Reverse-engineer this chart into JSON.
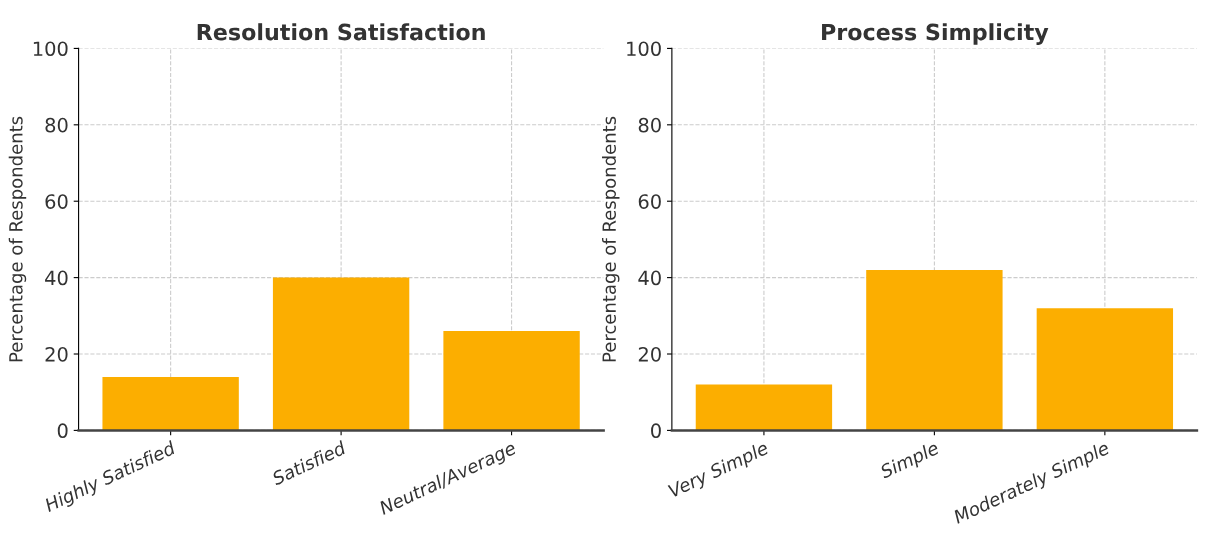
{
  "chart_data": [
    {
      "type": "bar",
      "title": "Resolution Satisfaction",
      "ylabel": "Percentage of Respondents",
      "categories": [
        "Highly Satisfied",
        "Satisfied",
        "Neutral/Average"
      ],
      "values": [
        14,
        40,
        26
      ],
      "color": "#fcae00",
      "ylim": [
        0,
        100
      ],
      "yticks": [
        0,
        20,
        40,
        60,
        80,
        100
      ],
      "grid": true
    },
    {
      "type": "bar",
      "title": "Process Simplicity",
      "ylabel": "Percentage of Respondents",
      "categories": [
        "Very Simple",
        "Simple",
        "Moderately Simple"
      ],
      "values": [
        12,
        42,
        32
      ],
      "color": "#fcae00",
      "ylim": [
        0,
        100
      ],
      "yticks": [
        0,
        20,
        40,
        60,
        80,
        100
      ],
      "grid": true
    }
  ]
}
